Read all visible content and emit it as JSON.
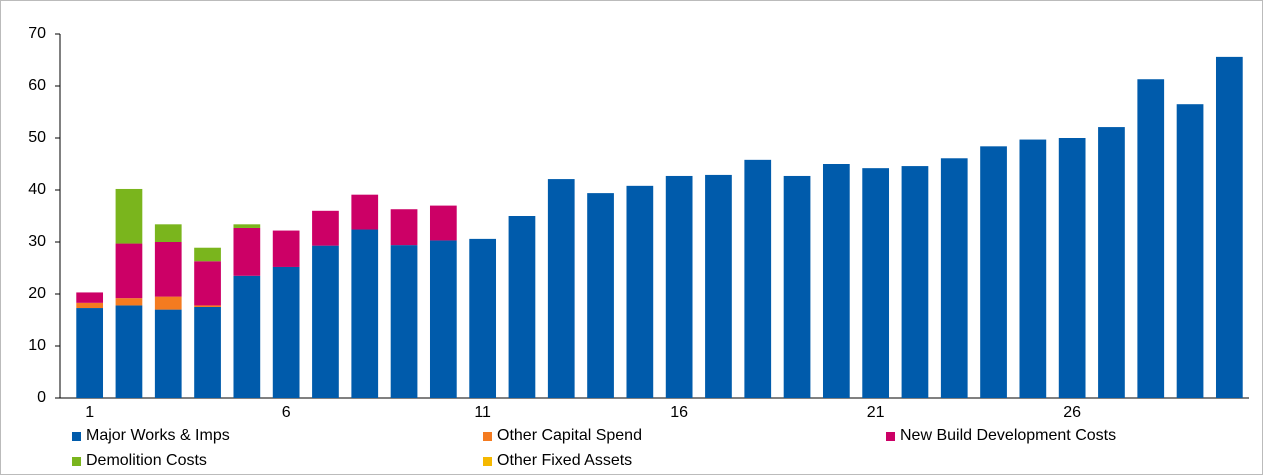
{
  "chart_data": {
    "type": "bar",
    "stacked": true,
    "categories": [
      "1",
      null,
      null,
      null,
      null,
      "6",
      null,
      null,
      null,
      null,
      "11",
      null,
      null,
      null,
      null,
      "16",
      null,
      null,
      null,
      null,
      "21",
      null,
      null,
      null,
      null,
      "26",
      null,
      null,
      null,
      null
    ],
    "series": [
      {
        "name": "Major Works & Imps",
        "color": "#005bab",
        "values": [
          17.3,
          17.8,
          17,
          17.5,
          23.5,
          25.2,
          29.3,
          32.4,
          29.4,
          30.3,
          30.6,
          35,
          42.1,
          39.4,
          40.8,
          42.7,
          42.9,
          45.8,
          42.7,
          45,
          44.2,
          44.6,
          46.1,
          48.4,
          49.7,
          50,
          52.1,
          61.3,
          56.5,
          65.6
        ]
      },
      {
        "name": "Other Capital Spend",
        "color": "#f47b20",
        "values": [
          1,
          1.4,
          2.5,
          0.3,
          0,
          0,
          0,
          0,
          0,
          0,
          0,
          0,
          0,
          0,
          0,
          0,
          0,
          0,
          0,
          0,
          0,
          0,
          0,
          0,
          0,
          0,
          0,
          0,
          0,
          0
        ]
      },
      {
        "name": "New Build Development Costs",
        "color": "#cc0066",
        "values": [
          2,
          10.5,
          10.5,
          8.5,
          9.2,
          7,
          6.7,
          6.7,
          6.9,
          6.7,
          0,
          0,
          0,
          0,
          0,
          0,
          0,
          0,
          0,
          0,
          0,
          0,
          0,
          0,
          0,
          0,
          0,
          0,
          0,
          0
        ]
      },
      {
        "name": "Demolition Costs",
        "color": "#7ab51d",
        "values": [
          0,
          10.5,
          3.4,
          2.6,
          0.7,
          0,
          0,
          0,
          0,
          0,
          0,
          0,
          0,
          0,
          0,
          0,
          0,
          0,
          0,
          0,
          0,
          0,
          0,
          0,
          0,
          0,
          0,
          0,
          0,
          0
        ]
      },
      {
        "name": "Other Fixed Assets",
        "color": "#f5b800",
        "values": [
          0,
          0,
          0,
          0,
          0,
          0,
          0,
          0,
          0,
          0,
          0,
          0,
          0,
          0,
          0,
          0,
          0,
          0,
          0,
          0,
          0,
          0,
          0,
          0,
          0,
          0,
          0,
          0,
          0,
          0
        ]
      }
    ],
    "ylim": [
      0,
      70
    ],
    "yticks": [
      0,
      10,
      20,
      30,
      40,
      50,
      60,
      70
    ],
    "grid": false
  }
}
